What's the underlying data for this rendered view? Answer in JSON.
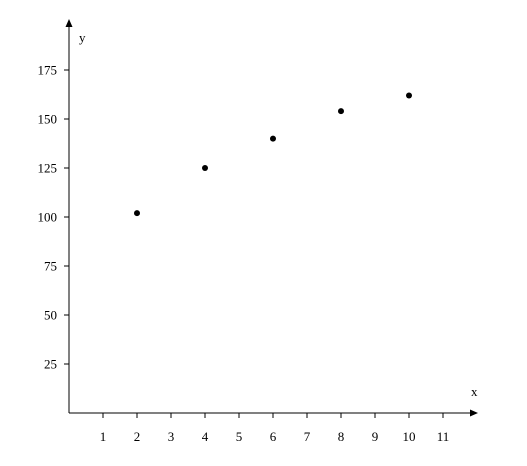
{
  "chart_data": {
    "type": "scatter",
    "title": "",
    "xlabel": "x",
    "ylabel": "y",
    "xlim": [
      0,
      12
    ],
    "ylim": [
      0,
      200
    ],
    "x_ticks": [
      1,
      2,
      3,
      4,
      5,
      6,
      7,
      8,
      9,
      10,
      11
    ],
    "y_ticks": [
      25,
      50,
      75,
      100,
      125,
      150,
      175
    ],
    "grid": false,
    "series": [
      {
        "points": [
          {
            "x": 2,
            "y": 102
          },
          {
            "x": 4,
            "y": 125
          },
          {
            "x": 6,
            "y": 140
          },
          {
            "x": 8,
            "y": 154
          },
          {
            "x": 10,
            "y": 162
          }
        ]
      }
    ],
    "colors": {
      "marker": "#000000",
      "axis": "#000000"
    }
  }
}
